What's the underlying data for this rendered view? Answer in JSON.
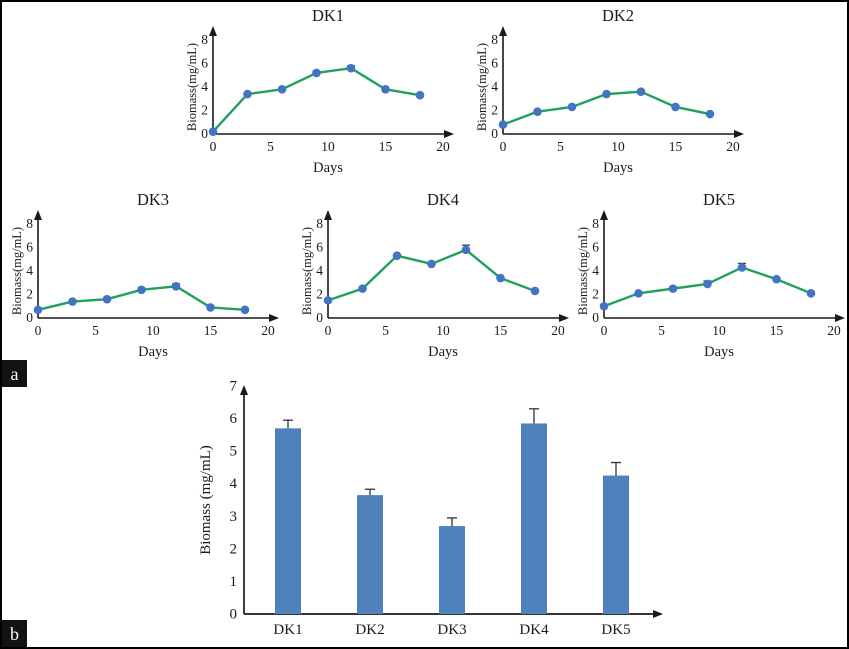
{
  "panels": {
    "a": {
      "label": "a"
    },
    "b": {
      "label": "b"
    }
  },
  "colors": {
    "line": "#21a05d",
    "marker": "#4374c4",
    "bar": "#4f81bd",
    "axis": "#1a1a1a",
    "text": "#1a1a1a",
    "error": "#333333",
    "panel_label_bg": "#121212",
    "panel_label_fg": "#ffffff"
  },
  "chart_data": [
    {
      "type": "line",
      "title": "DK1",
      "xlabel": "Days",
      "ylabel": "Biomass(mg/mL)",
      "x": [
        0,
        3,
        6,
        9,
        12,
        15,
        18
      ],
      "y": [
        0.2,
        3.4,
        3.8,
        5.2,
        5.6,
        3.8,
        3.3
      ],
      "yerr": [
        0,
        0,
        0,
        0.15,
        0.2,
        0,
        0
      ],
      "xlim": [
        0,
        20
      ],
      "ylim": [
        0,
        8
      ],
      "xticks": [
        0,
        5,
        10,
        15,
        20
      ],
      "yticks": [
        0,
        2,
        4,
        6,
        8
      ]
    },
    {
      "type": "line",
      "title": "DK2",
      "xlabel": "Days",
      "ylabel": "Biomass(mg/mL)",
      "x": [
        0,
        3,
        6,
        9,
        12,
        15,
        18
      ],
      "y": [
        0.8,
        1.9,
        2.3,
        3.4,
        3.6,
        2.3,
        1.7
      ],
      "yerr": [
        0,
        0,
        0,
        0,
        0,
        0,
        0
      ],
      "xlim": [
        0,
        20
      ],
      "ylim": [
        0,
        8
      ],
      "xticks": [
        0,
        5,
        10,
        15,
        20
      ],
      "yticks": [
        0,
        2,
        4,
        6,
        8
      ]
    },
    {
      "type": "line",
      "title": "DK3",
      "xlabel": "Days",
      "ylabel": "Biomass(mg/mL)",
      "x": [
        0,
        3,
        6,
        9,
        12,
        15,
        18
      ],
      "y": [
        0.7,
        1.4,
        1.6,
        2.4,
        2.7,
        0.9,
        0.7
      ],
      "yerr": [
        0,
        0,
        0,
        0.15,
        0.2,
        0,
        0
      ],
      "xlim": [
        0,
        20
      ],
      "ylim": [
        0,
        8
      ],
      "xticks": [
        0,
        5,
        10,
        15,
        20
      ],
      "yticks": [
        0,
        2,
        4,
        6,
        8
      ]
    },
    {
      "type": "line",
      "title": "DK4",
      "xlabel": "Days",
      "ylabel": "Biomass(mg/mL)",
      "x": [
        0,
        3,
        6,
        9,
        12,
        15,
        18
      ],
      "y": [
        1.5,
        2.5,
        5.3,
        4.6,
        5.8,
        3.4,
        2.3
      ],
      "yerr": [
        0,
        0,
        0,
        0,
        0.4,
        0,
        0
      ],
      "xlim": [
        0,
        20
      ],
      "ylim": [
        0,
        8
      ],
      "xticks": [
        0,
        5,
        10,
        15,
        20
      ],
      "yticks": [
        0,
        2,
        4,
        6,
        8
      ]
    },
    {
      "type": "line",
      "title": "DK5",
      "xlabel": "Days",
      "ylabel": "Biomass(mg/mL)",
      "x": [
        0,
        3,
        6,
        9,
        12,
        15,
        18
      ],
      "y": [
        1.0,
        2.1,
        2.5,
        2.9,
        4.3,
        3.3,
        2.1
      ],
      "yerr": [
        0,
        0.1,
        0.15,
        0.25,
        0.35,
        0.1,
        0.1
      ],
      "xlim": [
        0,
        20
      ],
      "ylim": [
        0,
        8
      ],
      "xticks": [
        0,
        5,
        10,
        15,
        20
      ],
      "yticks": [
        0,
        2,
        4,
        6,
        8
      ]
    },
    {
      "type": "bar",
      "title": "",
      "ylabel": "Biomass (mg/mL)",
      "categories": [
        "DK1",
        "DK2",
        "DK3",
        "DK4",
        "DK5"
      ],
      "values": [
        5.7,
        3.65,
        2.7,
        5.85,
        4.25
      ],
      "errors": [
        0.25,
        0.18,
        0.25,
        0.45,
        0.4
      ],
      "ylim": [
        0,
        7
      ],
      "yticks": [
        0,
        1,
        2,
        3,
        4,
        5,
        6,
        7
      ]
    }
  ]
}
